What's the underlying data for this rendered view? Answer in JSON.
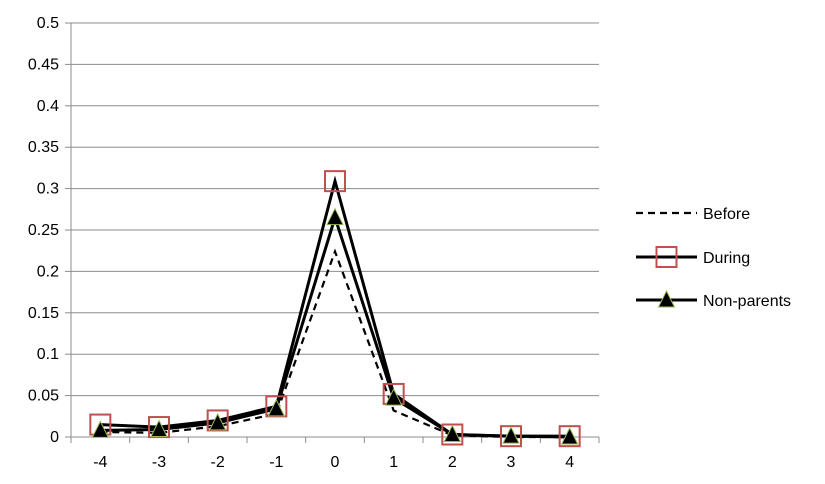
{
  "chart_data": {
    "type": "line",
    "title": "",
    "xlabel": "",
    "ylabel": "",
    "categories": [
      "-4",
      "-3",
      "-2",
      "-1",
      "0",
      "1",
      "2",
      "3",
      "4"
    ],
    "x": [
      -4,
      -3,
      -2,
      -1,
      0,
      1,
      2,
      3,
      4
    ],
    "ylim": [
      0,
      0.5
    ],
    "yticks": [
      "0",
      "0.05",
      "0.1",
      "0.15",
      "0.2",
      "0.25",
      "0.3",
      "0.35",
      "0.4",
      "0.45",
      "0.5"
    ],
    "grid": "horizontal",
    "legend_position": "right",
    "series": [
      {
        "name": "Before",
        "values": [
          0.006,
          0.005,
          0.013,
          0.028,
          0.224,
          0.032,
          0.002,
          0.0,
          0.0
        ],
        "line_style": "dashed",
        "marker": "none",
        "color": "#000000"
      },
      {
        "name": "During",
        "values": [
          0.015,
          0.012,
          0.02,
          0.037,
          0.309,
          0.052,
          0.003,
          0.001,
          0.001
        ],
        "line_style": "solid",
        "marker": "open-square",
        "color": "#000000",
        "marker_color": "#c0504d"
      },
      {
        "name": "Non-parents",
        "values": [
          0.008,
          0.009,
          0.017,
          0.034,
          0.265,
          0.047,
          0.003,
          0.001,
          0.0
        ],
        "line_style": "solid",
        "marker": "filled-triangle",
        "color": "#000000",
        "marker_color": "#000000",
        "marker_outline": "#9bbb59"
      }
    ]
  }
}
